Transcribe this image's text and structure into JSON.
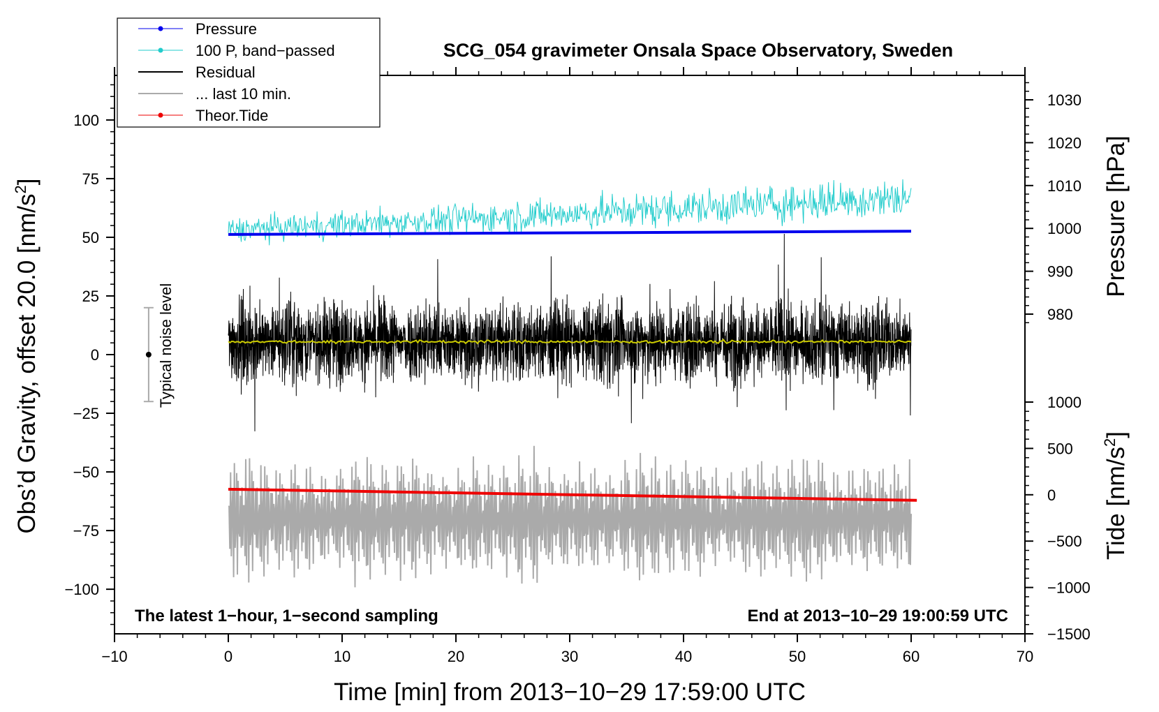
{
  "chart_data": {
    "type": "line",
    "title": "SCG_054 gravimeter Onsala Space Observatory, Sweden",
    "xlabel": "Time [min] from 2013−10−29 17:59:00 UTC",
    "xlim": [
      -10,
      70
    ],
    "x_ticks": [
      -10,
      0,
      10,
      20,
      30,
      40,
      50,
      60,
      70
    ],
    "x_tick_labels": [
      "−10",
      "0",
      "10",
      "20",
      "30",
      "40",
      "50",
      "60",
      "70"
    ],
    "left_axis": {
      "label": "Obs’d Gravity, offset 20.0 [nm/s²]",
      "label_main": "Obs’d Gravity, offset 20.0 [nm/s",
      "label_sup": "2",
      "label_tail": "]",
      "ylim": [
        -119,
        119
      ],
      "ticks": [
        100,
        75,
        50,
        25,
        0,
        -25,
        -50,
        -75,
        -100
      ],
      "tick_labels": [
        "100",
        "75",
        "50",
        "25",
        "0",
        "−25",
        "−50",
        "−75",
        "−100"
      ]
    },
    "pressure_axis": {
      "label": "Pressure [hPa]",
      "ticks": [
        1030,
        1020,
        1010,
        1000,
        990,
        980
      ],
      "tick_labels": [
        "1030",
        "1020",
        "1010",
        "1000",
        "990",
        "980"
      ]
    },
    "tide_axis": {
      "label": "Tide [nm/s²]",
      "label_main": "Tide [nm/s",
      "label_sup": "2",
      "label_tail": "]",
      "ticks": [
        1000,
        500,
        0,
        -500,
        -1000,
        -1500
      ],
      "tick_labels": [
        "1000",
        "500",
        "0",
        "−500",
        "−1000",
        "−1500"
      ]
    },
    "legend": {
      "position": "top-left",
      "entries": [
        {
          "name": "Pressure",
          "color": "#0000ee",
          "marker": true
        },
        {
          "name": "100 P, band−passed",
          "color": "#22cccc",
          "marker": true
        },
        {
          "name": "Residual",
          "color": "#000000",
          "marker": false
        },
        {
          "name": "... last 10 min.",
          "color": "#aaaaaa",
          "marker": false
        },
        {
          "name": "Theor.Tide",
          "color": "#ee0000",
          "marker": true
        }
      ]
    },
    "series": [
      {
        "name": "Pressure",
        "axis": "gravity",
        "color": "#0000ee",
        "x_range": [
          0,
          60
        ],
        "level_start": 51.2,
        "level_end": 52.6
      },
      {
        "name": "100 P, band−passed",
        "axis": "gravity",
        "color": "#22cccc",
        "x_range": [
          0,
          60
        ],
        "level_start": 53,
        "level_end": 67,
        "amplitude": 6
      },
      {
        "name": "Residual",
        "axis": "gravity",
        "color": "#000000",
        "x_range": [
          0,
          60
        ],
        "mean": 5.5,
        "amplitude": 16
      },
      {
        "name": "Residual mean",
        "axis": "gravity",
        "color": "#cccc00",
        "x_range": [
          0,
          60
        ],
        "level": 5.5
      },
      {
        "name": "... last 10 min.",
        "axis": "gravity",
        "color": "#aaaaaa",
        "x_range": [
          0,
          60
        ],
        "mean": -70,
        "amplitude": 22
      },
      {
        "name": "Theor.Tide",
        "axis": "tide",
        "color": "#ee0000",
        "x": [
          0,
          60.5
        ],
        "y": [
          60,
          -60
        ]
      }
    ],
    "noise_bar": {
      "label": "Typical noise level",
      "x": -7,
      "range": [
        -20,
        20
      ],
      "center": 0
    },
    "annotations": {
      "left": "The latest 1−hour, 1−second sampling",
      "right": "End at 2013−10−29 19:00:59 UTC"
    },
    "grid": false
  }
}
